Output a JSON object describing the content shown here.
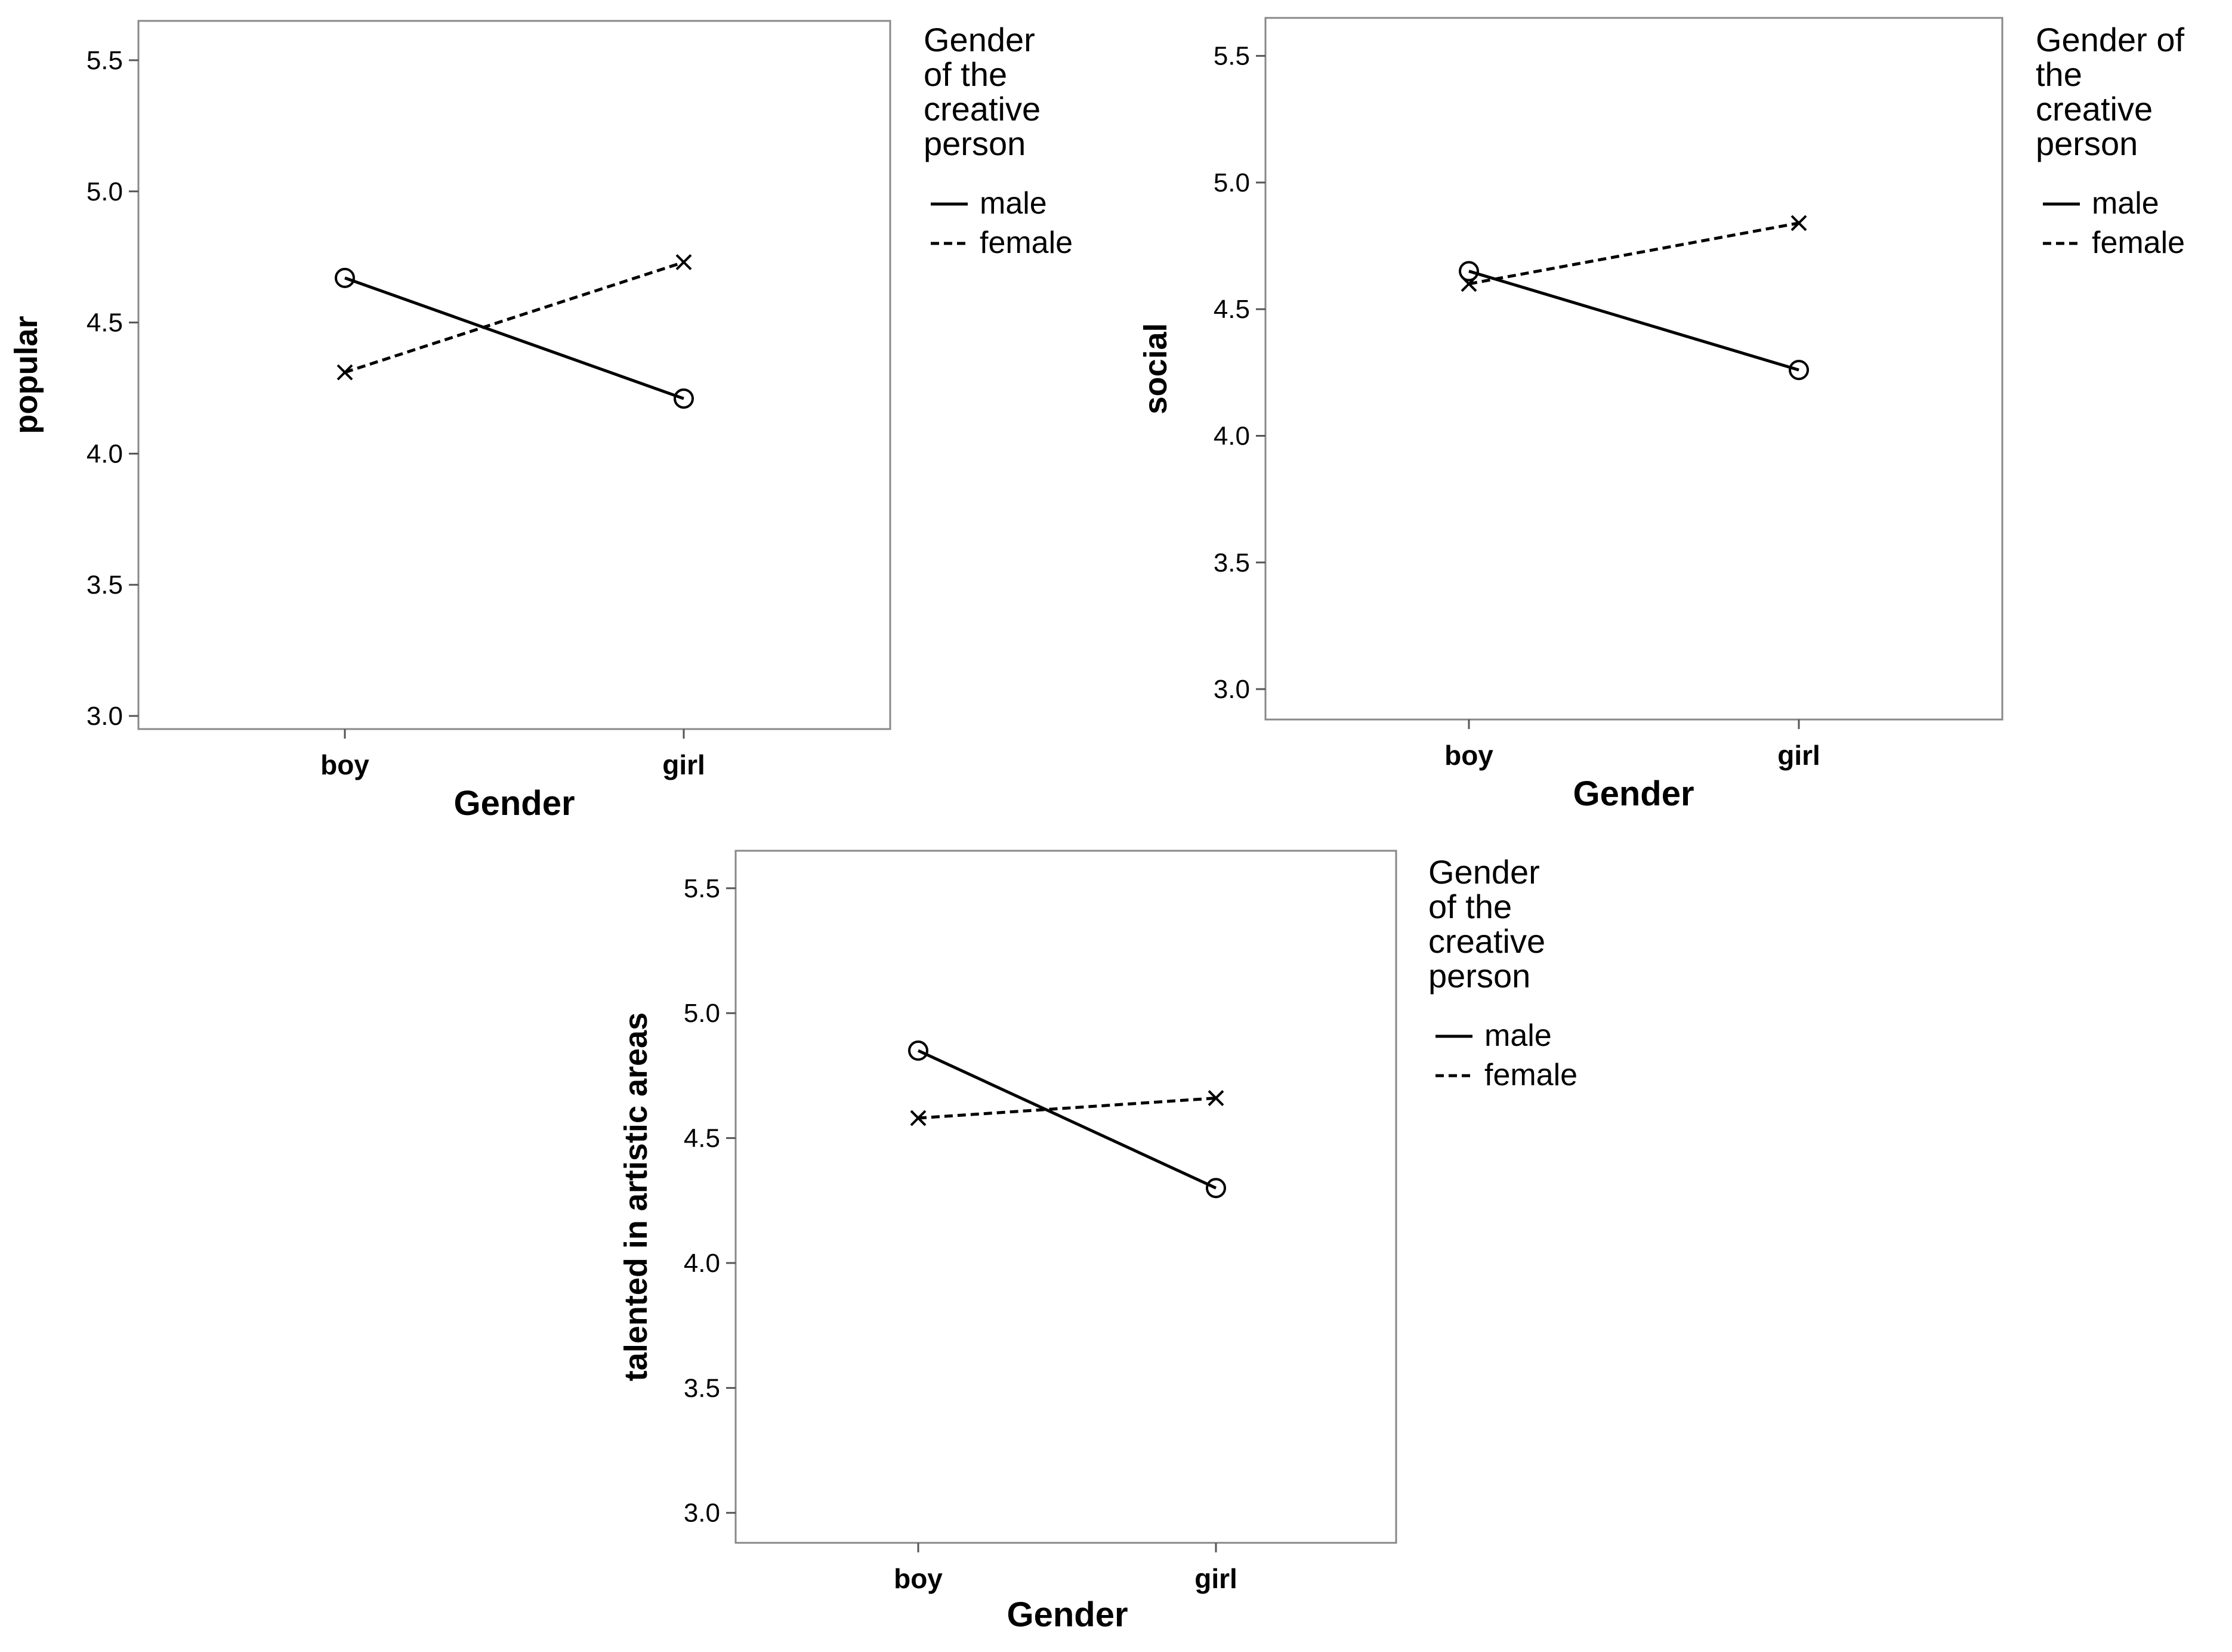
{
  "chart_data": [
    {
      "id": "popular",
      "type": "line",
      "title": "",
      "xlabel": "Gender",
      "ylabel": "popular",
      "categories": [
        "boy",
        "girl"
      ],
      "ylim": [
        2.95,
        5.65
      ],
      "yticks": [
        3.0,
        3.5,
        4.0,
        4.5,
        5.0,
        5.5
      ],
      "legend_title": "Gender of the creative person",
      "legend_title_lines": [
        "Gender",
        "of the",
        "creative",
        "person"
      ],
      "legend_position": "right",
      "series": [
        {
          "name": "male",
          "style": "solid",
          "marker": "circle",
          "values": [
            4.67,
            4.21
          ]
        },
        {
          "name": "female",
          "style": "dashed",
          "marker": "x",
          "values": [
            4.31,
            4.73
          ]
        }
      ]
    },
    {
      "id": "social",
      "type": "line",
      "title": "",
      "xlabel": "Gender",
      "ylabel": "social",
      "categories": [
        "boy",
        "girl"
      ],
      "ylim": [
        2.88,
        5.65
      ],
      "yticks": [
        3.0,
        3.5,
        4.0,
        4.5,
        5.0,
        5.5
      ],
      "legend_title": "Gender of the creative person",
      "legend_title_lines": [
        "Gender of",
        "the",
        "creative",
        "person"
      ],
      "legend_position": "right",
      "series": [
        {
          "name": "male",
          "style": "solid",
          "marker": "circle",
          "values": [
            4.65,
            4.26
          ]
        },
        {
          "name": "female",
          "style": "dashed",
          "marker": "x",
          "values": [
            4.6,
            4.84
          ]
        }
      ]
    },
    {
      "id": "talented",
      "type": "line",
      "title": "",
      "xlabel": "Gender",
      "ylabel": "talented in artistic areas",
      "categories": [
        "boy",
        "girl"
      ],
      "ylim": [
        2.88,
        5.65
      ],
      "yticks": [
        3.0,
        3.5,
        4.0,
        4.5,
        5.0,
        5.5
      ],
      "legend_title": "Gender of the creative person",
      "legend_title_lines": [
        "Gender",
        "of the",
        "creative",
        "person"
      ],
      "legend_position": "right",
      "series": [
        {
          "name": "male",
          "style": "solid",
          "marker": "circle",
          "values": [
            4.85,
            4.3
          ]
        },
        {
          "name": "female",
          "style": "dashed",
          "marker": "x",
          "values": [
            4.58,
            4.66
          ]
        }
      ]
    }
  ]
}
